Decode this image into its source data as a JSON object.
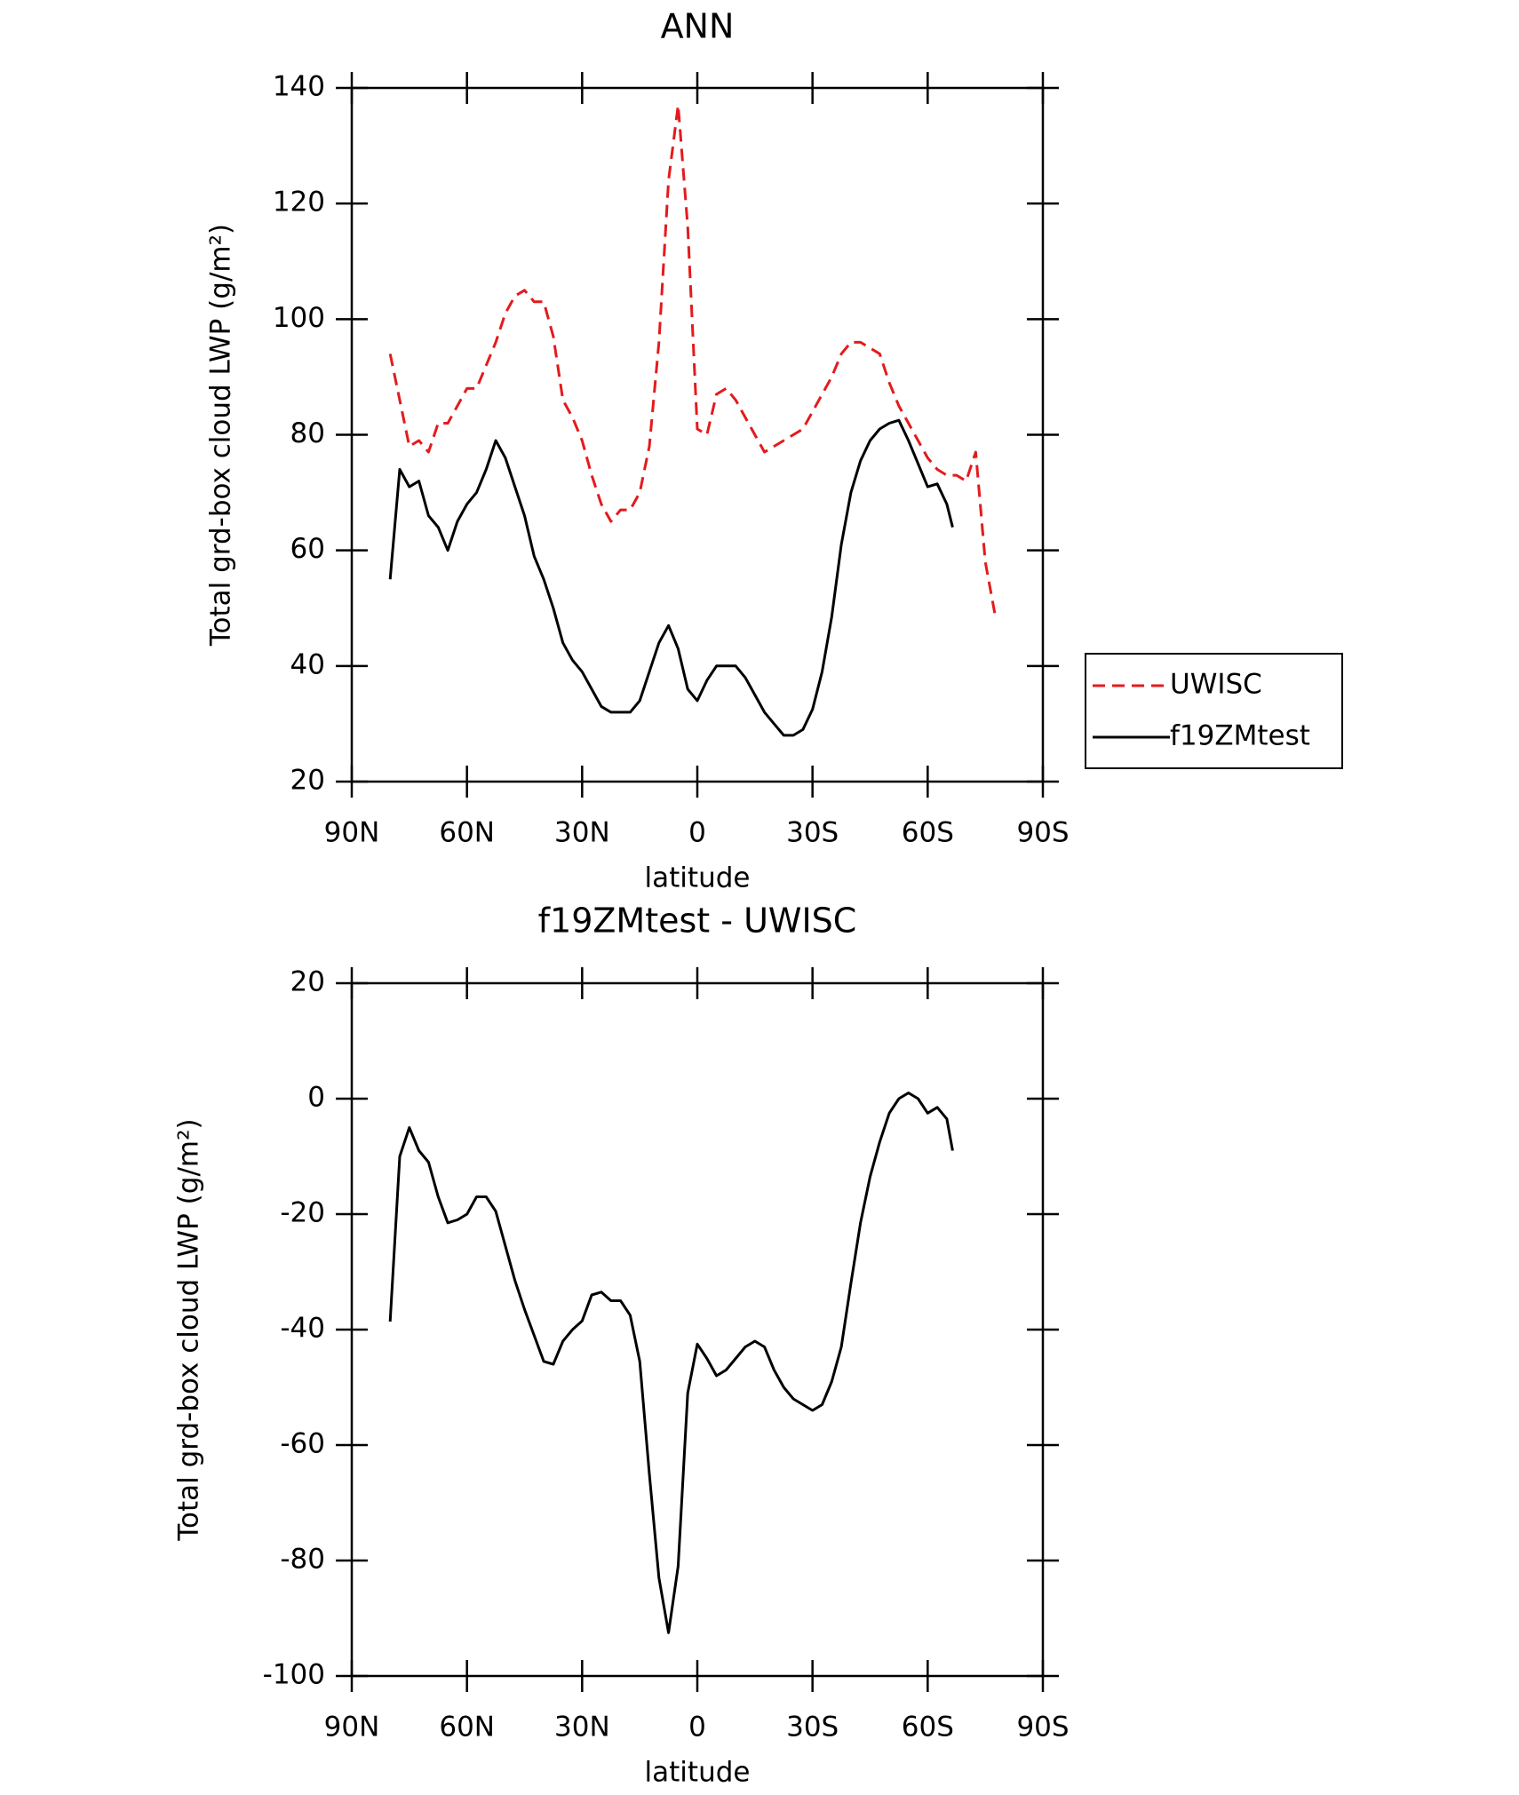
{
  "chart_data": [
    {
      "type": "line",
      "title": "ANN",
      "x_label": "latitude",
      "y_label": "Total grd-box cloud LWP (g/m²)",
      "xlim": [
        90,
        -90
      ],
      "ylim": [
        20,
        140
      ],
      "xticks": [
        {
          "value": 90,
          "label": "90N"
        },
        {
          "value": 60,
          "label": "60N"
        },
        {
          "value": 30,
          "label": "30N"
        },
        0,
        {
          "value": -30,
          "label": "30S"
        },
        {
          "value": -60,
          "label": "60S"
        },
        {
          "value": -90,
          "label": "90S"
        }
      ],
      "yticks": [
        20,
        40,
        60,
        80,
        100,
        120,
        140
      ],
      "legend": "right",
      "series": [
        {
          "name": "UWISC",
          "color": "#e41a1c",
          "linestyle": "dashed",
          "x": [
            80,
            77.5,
            75,
            72.5,
            70,
            67.5,
            65,
            62.5,
            60,
            57.5,
            55,
            52.5,
            50,
            47.5,
            45,
            42.5,
            40,
            37.5,
            35,
            32.5,
            30,
            27.5,
            25,
            22.5,
            20,
            17.5,
            15,
            12.5,
            10,
            7.5,
            5,
            2.5,
            0,
            -2.5,
            -5,
            -7.5,
            -10,
            -12.5,
            -15,
            -17.5,
            -20,
            -22.5,
            -25,
            -27.5,
            -30,
            -32.5,
            -35,
            -37.5,
            -40,
            -42.5,
            -45,
            -47.5,
            -50,
            -52.5,
            -55,
            -57.5,
            -60,
            -62.5,
            -65,
            -67.5,
            -70,
            -72.5,
            -75,
            -77.5
          ],
          "values": [
            94,
            86,
            78,
            79,
            77,
            82,
            82,
            85,
            88,
            88,
            92,
            96,
            101,
            104,
            105,
            103,
            103,
            97,
            86,
            83,
            79,
            73,
            68,
            65,
            67,
            67,
            70,
            78,
            96,
            124,
            137,
            116,
            81,
            80,
            87,
            88,
            86,
            83,
            80,
            77,
            78,
            79,
            80,
            81,
            84,
            87,
            90,
            94,
            96,
            96,
            95,
            94,
            89,
            85,
            82,
            79,
            76,
            74,
            73,
            73,
            72,
            77,
            58,
            49
          ]
        },
        {
          "name": "f19ZMtest",
          "color": "#000000",
          "linestyle": "solid",
          "x": [
            80,
            77.5,
            75,
            72.5,
            70,
            67.5,
            65,
            62.5,
            60,
            57.5,
            55,
            52.5,
            50,
            47.5,
            45,
            42.5,
            40,
            37.5,
            35,
            32.5,
            30,
            27.5,
            25,
            22.5,
            20,
            17.5,
            15,
            12.5,
            10,
            7.5,
            5,
            2.5,
            0,
            -2.5,
            -5,
            -7.5,
            -10,
            -12.5,
            -15,
            -17.5,
            -20,
            -22.5,
            -25,
            -27.5,
            -30,
            -32.5,
            -35,
            -37.5,
            -40,
            -42.5,
            -45,
            -47.5,
            -50,
            -52.5,
            -55,
            -57.5,
            -60,
            -62.5,
            -65,
            -66.5
          ],
          "values": [
            55,
            74,
            71,
            72,
            66,
            64,
            60,
            65,
            68,
            70,
            74,
            79,
            76,
            71,
            66,
            59,
            55,
            50,
            44,
            41,
            39,
            36,
            33,
            32,
            32,
            32,
            34,
            39,
            44,
            47,
            43,
            36,
            34,
            37.5,
            40,
            40,
            40,
            38,
            35,
            32,
            30,
            28,
            28,
            29,
            32.5,
            39,
            48.5,
            61,
            70,
            75.5,
            79,
            81,
            82,
            82.5,
            79,
            75,
            71,
            71.5,
            68,
            64
          ]
        }
      ]
    },
    {
      "type": "line",
      "title": "f19ZMtest - UWISC",
      "x_label": "latitude",
      "y_label": "Total grd-box cloud LWP (g/m²)",
      "xlim": [
        90,
        -90
      ],
      "ylim": [
        -100,
        20
      ],
      "xticks": [
        {
          "value": 90,
          "label": "90N"
        },
        {
          "value": 60,
          "label": "60N"
        },
        {
          "value": 30,
          "label": "30N"
        },
        0,
        {
          "value": -30,
          "label": "30S"
        },
        {
          "value": -60,
          "label": "60S"
        },
        {
          "value": -90,
          "label": "90S"
        }
      ],
      "yticks": [
        -100,
        -80,
        -60,
        -40,
        -20,
        0,
        20
      ],
      "series": [
        {
          "color": "#000000",
          "linestyle": "solid",
          "x": [
            80,
            77.5,
            75,
            72.5,
            70,
            67.5,
            65,
            62.5,
            60,
            57.5,
            55,
            52.5,
            50,
            47.5,
            45,
            42.5,
            40,
            37.5,
            35,
            32.5,
            30,
            27.5,
            25,
            22.5,
            20,
            17.5,
            15,
            12.5,
            10,
            7.5,
            5,
            2.5,
            0,
            -2.5,
            -5,
            -7.5,
            -10,
            -12.5,
            -15,
            -17.5,
            -20,
            -22.5,
            -25,
            -27.5,
            -30,
            -32.5,
            -35,
            -37.5,
            -40,
            -42.5,
            -45,
            -47.5,
            -50,
            -52.5,
            -55,
            -57.5,
            -60,
            -62.5,
            -65,
            -66.5
          ],
          "values": [
            -38.6,
            -10,
            -5,
            -9,
            -11,
            -17,
            -21.5,
            -21,
            -20,
            -17,
            -17,
            -19.5,
            -25.5,
            -31.5,
            -36.5,
            -41,
            -45.5,
            -46,
            -42,
            -40,
            -38.5,
            -34,
            -33.5,
            -35,
            -35,
            -37.5,
            -45.5,
            -65,
            -83,
            -92.5,
            -81,
            -51,
            -42.5,
            -45,
            -48,
            -47,
            -45,
            -43,
            -42,
            -43,
            -47,
            -50,
            -52,
            -53,
            -54,
            -53,
            -49,
            -43,
            -32,
            -21.5,
            -13.5,
            -7.5,
            -2.5,
            0,
            1,
            0,
            -2.5,
            -1.5,
            -3.5,
            -9
          ]
        }
      ]
    }
  ]
}
